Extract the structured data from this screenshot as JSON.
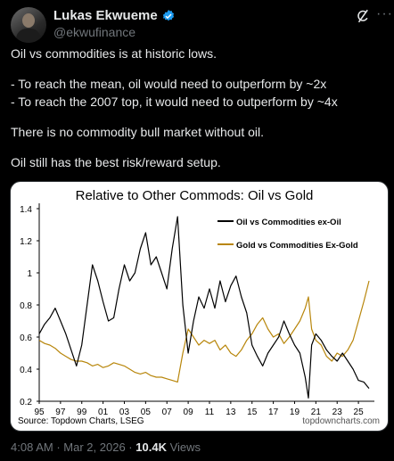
{
  "author": {
    "name": "Lukas Ekwueme",
    "handle": "@ekwufinance"
  },
  "tweet": {
    "lines": [
      "Oil vs commodities is at historic lows.",
      "",
      "- To reach the mean, oil would need to outperform by ~2x",
      "- To reach the 2007 top, it would need to outperform by ~4x",
      "",
      "There is no commodity bull market without oil.",
      "",
      "Oil still has the best risk/reward setup."
    ]
  },
  "meta": {
    "time": "4:08 AM",
    "separator1": "·",
    "date": "Mar 2, 2026",
    "separator2": "·",
    "views_count": "10.4K",
    "views_label": "Views"
  },
  "icons": {
    "verified": "verified-badge-icon",
    "grok": "grok-icon",
    "more": "more-icon"
  },
  "chart_data": {
    "type": "line",
    "title": "Relative to Other Commods: Oil vs Gold",
    "source": "Source: Topdown Charts, LSEG",
    "watermark": "topdowncharts.com",
    "xlabel": "",
    "ylabel": "",
    "ylim": [
      0.2,
      1.4
    ],
    "yticks": [
      "0.2",
      "0.4",
      "0.6",
      "0.8",
      "1",
      "1.2",
      "1.4"
    ],
    "xlim": [
      1995,
      2026.5
    ],
    "xticks": [
      "95",
      "97",
      "99",
      "01",
      "03",
      "05",
      "07",
      "09",
      "11",
      "13",
      "15",
      "17",
      "19",
      "21",
      "23",
      "25"
    ],
    "legend": "top-right",
    "grid": false,
    "series": [
      {
        "name": "Oil vs Commodities ex-Oil",
        "color": "#000000",
        "x": [
          1995.0,
          1995.5,
          1996.0,
          1996.5,
          1997.0,
          1997.5,
          1998.0,
          1998.5,
          1999.0,
          1999.5,
          2000.0,
          2000.5,
          2001.0,
          2001.5,
          2002.0,
          2002.5,
          2003.0,
          2003.5,
          2004.0,
          2004.5,
          2005.0,
          2005.5,
          2006.0,
          2006.5,
          2007.0,
          2007.5,
          2008.0,
          2008.5,
          2009.0,
          2009.5,
          2010.0,
          2010.5,
          2011.0,
          2011.5,
          2012.0,
          2012.5,
          2013.0,
          2013.5,
          2014.0,
          2014.5,
          2015.0,
          2015.5,
          2016.0,
          2016.5,
          2017.0,
          2017.5,
          2018.0,
          2018.5,
          2019.0,
          2019.5,
          2020.0,
          2020.3,
          2020.6,
          2021.0,
          2021.5,
          2022.0,
          2022.5,
          2023.0,
          2023.5,
          2024.0,
          2024.5,
          2025.0,
          2025.5,
          2026.0
        ],
        "values": [
          0.62,
          0.68,
          0.72,
          0.78,
          0.7,
          0.62,
          0.52,
          0.42,
          0.55,
          0.8,
          1.05,
          0.95,
          0.82,
          0.7,
          0.72,
          0.9,
          1.05,
          0.95,
          1.0,
          1.15,
          1.25,
          1.05,
          1.1,
          1.0,
          0.9,
          1.15,
          1.35,
          0.8,
          0.5,
          0.7,
          0.85,
          0.78,
          0.9,
          0.78,
          0.95,
          0.82,
          0.92,
          0.98,
          0.85,
          0.75,
          0.55,
          0.48,
          0.42,
          0.5,
          0.55,
          0.6,
          0.7,
          0.62,
          0.55,
          0.5,
          0.35,
          0.22,
          0.55,
          0.62,
          0.58,
          0.52,
          0.48,
          0.45,
          0.5,
          0.45,
          0.4,
          0.33,
          0.32,
          0.28
        ]
      },
      {
        "name": "Gold vs Commodities Ex-Gold",
        "color": "#b8860b",
        "x": [
          1995.0,
          1995.5,
          1996.0,
          1996.5,
          1997.0,
          1997.5,
          1998.0,
          1998.5,
          1999.0,
          1999.5,
          2000.0,
          2000.5,
          2001.0,
          2001.5,
          2002.0,
          2002.5,
          2003.0,
          2003.5,
          2004.0,
          2004.5,
          2005.0,
          2005.5,
          2006.0,
          2006.5,
          2007.0,
          2007.5,
          2008.0,
          2008.5,
          2009.0,
          2009.5,
          2010.0,
          2010.5,
          2011.0,
          2011.5,
          2012.0,
          2012.5,
          2013.0,
          2013.5,
          2014.0,
          2014.5,
          2015.0,
          2015.5,
          2016.0,
          2016.5,
          2017.0,
          2017.5,
          2018.0,
          2018.5,
          2019.0,
          2019.5,
          2020.0,
          2020.3,
          2020.6,
          2021.0,
          2021.5,
          2022.0,
          2022.5,
          2023.0,
          2023.5,
          2024.0,
          2024.5,
          2025.0,
          2025.5,
          2026.0
        ],
        "values": [
          0.58,
          0.56,
          0.55,
          0.53,
          0.5,
          0.48,
          0.46,
          0.45,
          0.45,
          0.44,
          0.42,
          0.43,
          0.41,
          0.42,
          0.44,
          0.43,
          0.42,
          0.4,
          0.38,
          0.37,
          0.38,
          0.36,
          0.35,
          0.35,
          0.34,
          0.33,
          0.32,
          0.5,
          0.65,
          0.6,
          0.55,
          0.58,
          0.56,
          0.58,
          0.52,
          0.55,
          0.5,
          0.48,
          0.52,
          0.58,
          0.62,
          0.68,
          0.72,
          0.65,
          0.6,
          0.62,
          0.56,
          0.6,
          0.65,
          0.7,
          0.78,
          0.85,
          0.65,
          0.58,
          0.55,
          0.48,
          0.45,
          0.5,
          0.48,
          0.52,
          0.58,
          0.7,
          0.82,
          0.95
        ]
      }
    ]
  }
}
